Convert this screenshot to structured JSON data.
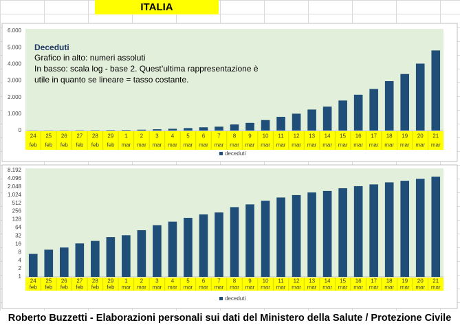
{
  "header": {
    "title": "ITALIA"
  },
  "footer": {
    "text": "Roberto Buzzetti - Elaborazioni personali sui dati del Ministero della Salute / Protezione Civile"
  },
  "chart_data": [
    {
      "type": "bar",
      "title": "Deceduti",
      "annotation": [
        "Grafico in alto: numeri assoluti",
        "In basso: scala log - base 2. Quest’ultima rappresentazione è",
        "utile in quanto se lineare = tasso costante."
      ],
      "categories": [
        [
          "24",
          "feb"
        ],
        [
          "25",
          "feb"
        ],
        [
          "26",
          "feb"
        ],
        [
          "27",
          "feb"
        ],
        [
          "28",
          "feb"
        ],
        [
          "29",
          "feb"
        ],
        [
          "1",
          "mar"
        ],
        [
          "2",
          "mar"
        ],
        [
          "3",
          "mar"
        ],
        [
          "4",
          "mar"
        ],
        [
          "5",
          "mar"
        ],
        [
          "6",
          "mar"
        ],
        [
          "7",
          "mar"
        ],
        [
          "8",
          "mar"
        ],
        [
          "9",
          "mar"
        ],
        [
          "10",
          "mar"
        ],
        [
          "11",
          "mar"
        ],
        [
          "12",
          "mar"
        ],
        [
          "13",
          "mar"
        ],
        [
          "14",
          "mar"
        ],
        [
          "15",
          "mar"
        ],
        [
          "16",
          "mar"
        ],
        [
          "17",
          "mar"
        ],
        [
          "18",
          "mar"
        ],
        [
          "19",
          "mar"
        ],
        [
          "20",
          "mar"
        ],
        [
          "21",
          "mar"
        ]
      ],
      "series": [
        {
          "name": "deceduti",
          "color": "#1f4e79",
          "values": [
            7,
            10,
            12,
            17,
            21,
            29,
            34,
            52,
            79,
            107,
            148,
            197,
            233,
            366,
            463,
            631,
            827,
            1016,
            1266,
            1441,
            1809,
            2158,
            2503,
            2978,
            3405,
            4032,
            4825
          ]
        }
      ],
      "ylim": [
        0,
        6000
      ],
      "yticks": [
        0,
        {
          "value": 1000,
          "label": "1.000"
        },
        {
          "value": 2000,
          "label": "2.000"
        },
        {
          "value": 3000,
          "label": "3.000"
        },
        {
          "value": 4000,
          "label": "4.000"
        },
        {
          "value": 5000,
          "label": "5.000"
        },
        {
          "value": 6000,
          "label": "6.000"
        }
      ],
      "log_scale": false,
      "grid": false,
      "legend": "bottom"
    },
    {
      "type": "bar",
      "categories": [
        [
          "24",
          "feb"
        ],
        [
          "25",
          "feb"
        ],
        [
          "26",
          "feb"
        ],
        [
          "27",
          "feb"
        ],
        [
          "28",
          "feb"
        ],
        [
          "29",
          "feb"
        ],
        [
          "1",
          "mar"
        ],
        [
          "2",
          "mar"
        ],
        [
          "3",
          "mar"
        ],
        [
          "4",
          "mar"
        ],
        [
          "5",
          "mar"
        ],
        [
          "6",
          "mar"
        ],
        [
          "7",
          "mar"
        ],
        [
          "8",
          "mar"
        ],
        [
          "9",
          "mar"
        ],
        [
          "10",
          "mar"
        ],
        [
          "11",
          "mar"
        ],
        [
          "12",
          "mar"
        ],
        [
          "13",
          "mar"
        ],
        [
          "14",
          "mar"
        ],
        [
          "15",
          "mar"
        ],
        [
          "16",
          "mar"
        ],
        [
          "17",
          "mar"
        ],
        [
          "18",
          "mar"
        ],
        [
          "19",
          "mar"
        ],
        [
          "20",
          "mar"
        ],
        [
          "21",
          "mar"
        ]
      ],
      "series": [
        {
          "name": "deceduti",
          "color": "#1f4e79",
          "values": [
            7,
            10,
            12,
            17,
            21,
            29,
            34,
            52,
            79,
            107,
            148,
            197,
            233,
            366,
            463,
            631,
            827,
            1016,
            1266,
            1441,
            1809,
            2158,
            2503,
            2978,
            3405,
            4032,
            4825
          ]
        }
      ],
      "ylim": [
        1,
        8192
      ],
      "yticks": [
        1,
        2,
        4,
        8,
        16,
        32,
        64,
        128,
        256,
        512,
        {
          "value": 1024,
          "label": "1.024"
        },
        {
          "value": 2048,
          "label": "2.048"
        },
        {
          "value": 4096,
          "label": "4.096"
        },
        {
          "value": 8192,
          "label": "8.192"
        }
      ],
      "log_scale": true,
      "log_base": 2,
      "grid": false,
      "legend": "bottom"
    }
  ]
}
